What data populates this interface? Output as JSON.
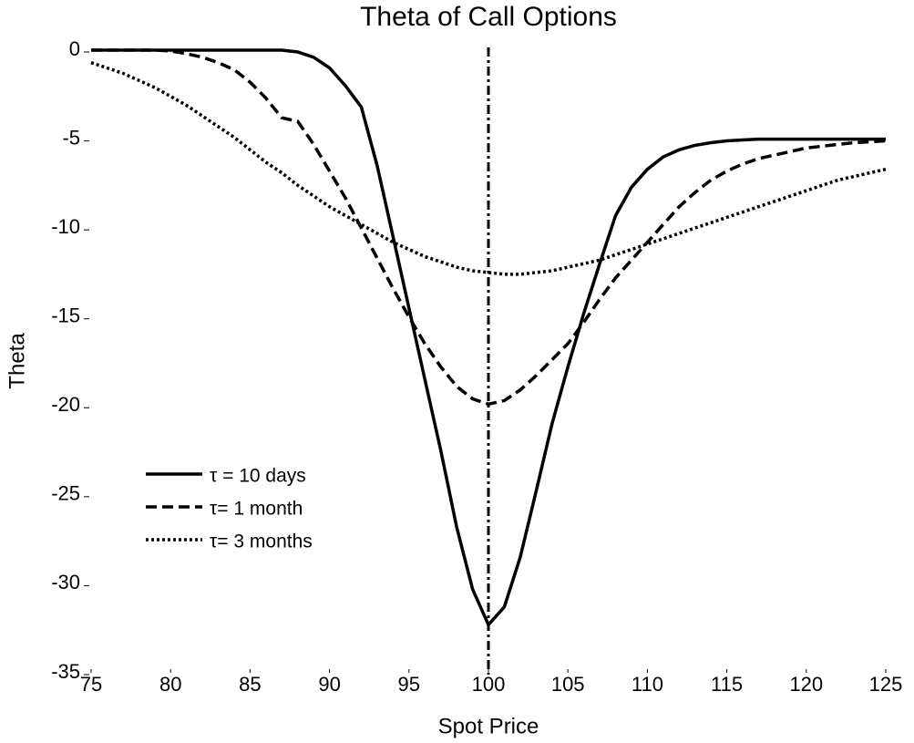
{
  "chart_data": {
    "type": "line",
    "title": "Theta of Call Options",
    "x_label": "Spot Price",
    "y_label": "Theta",
    "x": [
      75,
      76,
      77,
      78,
      79,
      80,
      81,
      82,
      83,
      84,
      85,
      86,
      87,
      88,
      89,
      90,
      91,
      92,
      93,
      94,
      95,
      96,
      97,
      98,
      99,
      100,
      101,
      102,
      103,
      104,
      105,
      106,
      107,
      108,
      109,
      110,
      111,
      112,
      113,
      114,
      115,
      116,
      117,
      118,
      119,
      120,
      121,
      122,
      123,
      124,
      125
    ],
    "series": [
      {
        "name": "τ = 10 days",
        "color": "#000000",
        "style": "solid",
        "values": [
          0,
          0,
          0,
          0,
          0,
          0,
          0,
          0,
          0,
          0,
          0,
          0,
          0,
          -0.1,
          -0.4,
          -1,
          -2,
          -3.2,
          -6.5,
          -10.5,
          -14.5,
          -18.5,
          -22.5,
          -26.8,
          -30.3,
          -32.3,
          -31.3,
          -28.5,
          -24.8,
          -21,
          -17.8,
          -14.8,
          -12,
          -9.3,
          -7.7,
          -6.7,
          -6,
          -5.6,
          -5.35,
          -5.2,
          -5.1,
          -5.05,
          -5,
          -5,
          -5,
          -5,
          -5,
          -5,
          -5,
          -5,
          -5
        ]
      },
      {
        "name": "τ= 1 month",
        "color": "#000000",
        "style": "dashed",
        "values": [
          0,
          0,
          0,
          0,
          0,
          -0.05,
          -0.2,
          -0.4,
          -0.7,
          -1.1,
          -1.8,
          -2.7,
          -3.8,
          -4,
          -5.3,
          -6.8,
          -8.3,
          -10,
          -11.7,
          -13.4,
          -15,
          -16.5,
          -17.8,
          -18.9,
          -19.6,
          -19.9,
          -19.7,
          -19.1,
          -18.3,
          -17.4,
          -16.5,
          -15.3,
          -14,
          -12.8,
          -11.8,
          -10.8,
          -9.8,
          -8.8,
          -8,
          -7.3,
          -6.8,
          -6.4,
          -6.1,
          -5.9,
          -5.7,
          -5.5,
          -5.4,
          -5.3,
          -5.2,
          -5.15,
          -5.1
        ]
      },
      {
        "name": "τ= 3 months",
        "color": "#000000",
        "style": "dotted",
        "values": [
          -0.7,
          -1,
          -1.3,
          -1.7,
          -2.1,
          -2.6,
          -3.1,
          -3.7,
          -4.3,
          -4.9,
          -5.6,
          -6.3,
          -6.9,
          -7.6,
          -8.2,
          -8.8,
          -9.3,
          -9.8,
          -10.3,
          -10.8,
          -11.2,
          -11.6,
          -11.9,
          -12.2,
          -12.4,
          -12.5,
          -12.6,
          -12.6,
          -12.5,
          -12.4,
          -12.2,
          -12,
          -11.8,
          -11.5,
          -11.2,
          -10.9,
          -10.6,
          -10.3,
          -10,
          -9.7,
          -9.4,
          -9.1,
          -8.8,
          -8.5,
          -8.2,
          -7.9,
          -7.6,
          -7.3,
          -7.1,
          -6.9,
          -6.7
        ]
      }
    ],
    "vline": 100,
    "xlim": [
      75,
      125
    ],
    "xticks": [
      75,
      80,
      85,
      90,
      95,
      100,
      105,
      110,
      115,
      120,
      125
    ],
    "ylim": [
      -35,
      0
    ],
    "yticks": [
      0,
      -5,
      -10,
      -15,
      -20,
      -25,
      -30,
      -35
    ],
    "grid": false,
    "legend": "lower left"
  }
}
